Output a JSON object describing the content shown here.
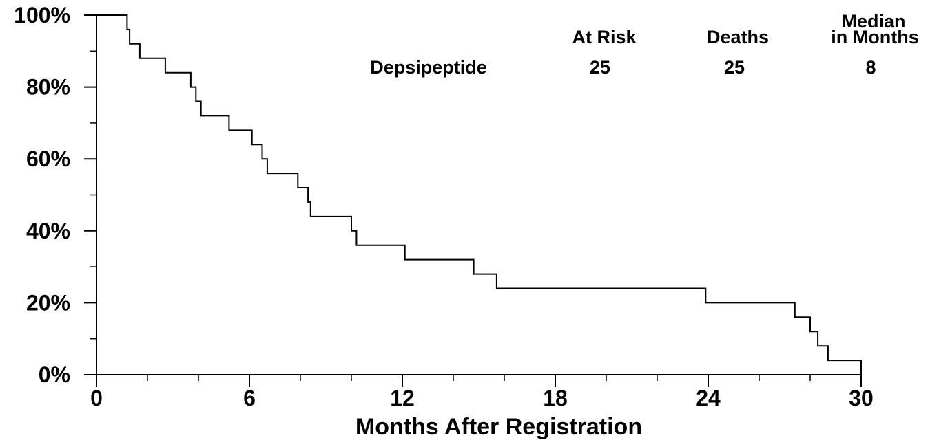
{
  "chart_data": {
    "type": "line",
    "xlabel": "Months After Registration",
    "ylabel": "",
    "xlim": [
      0,
      30
    ],
    "ylim": [
      0,
      100
    ],
    "x_ticks": [
      0,
      6,
      12,
      18,
      24,
      30
    ],
    "x_tick_labels": [
      "0",
      "6",
      "12",
      "18",
      "24",
      "30"
    ],
    "x_minor_ticks": [
      2,
      4,
      8,
      10,
      14,
      16,
      20,
      22,
      26,
      28
    ],
    "y_ticks": [
      0,
      20,
      40,
      60,
      80,
      100
    ],
    "y_tick_labels": [
      "0%",
      "20%",
      "40%",
      "60%",
      "80%",
      "100%"
    ],
    "y_minor_ticks": [
      10,
      30,
      50,
      70,
      90
    ],
    "grid": false,
    "series": [
      {
        "name": "Depsipeptide",
        "step": true,
        "color": "#000000",
        "points": [
          [
            0,
            100
          ],
          [
            1.2,
            100
          ],
          [
            1.2,
            96
          ],
          [
            1.3,
            96
          ],
          [
            1.3,
            92
          ],
          [
            1.7,
            92
          ],
          [
            1.7,
            88
          ],
          [
            2.7,
            88
          ],
          [
            2.7,
            84
          ],
          [
            3.7,
            84
          ],
          [
            3.7,
            80
          ],
          [
            3.9,
            80
          ],
          [
            3.9,
            76
          ],
          [
            4.1,
            76
          ],
          [
            4.1,
            72
          ],
          [
            5.2,
            72
          ],
          [
            5.2,
            68
          ],
          [
            6.1,
            68
          ],
          [
            6.1,
            64
          ],
          [
            6.5,
            64
          ],
          [
            6.5,
            60
          ],
          [
            6.7,
            60
          ],
          [
            6.7,
            56
          ],
          [
            7.9,
            56
          ],
          [
            7.9,
            52
          ],
          [
            8.3,
            52
          ],
          [
            8.3,
            48
          ],
          [
            8.4,
            48
          ],
          [
            8.4,
            44
          ],
          [
            10.0,
            44
          ],
          [
            10.0,
            40
          ],
          [
            10.2,
            40
          ],
          [
            10.2,
            36
          ],
          [
            12.1,
            36
          ],
          [
            12.1,
            32
          ],
          [
            14.8,
            32
          ],
          [
            14.8,
            28
          ],
          [
            15.7,
            28
          ],
          [
            15.7,
            24
          ],
          [
            23.9,
            24
          ],
          [
            23.9,
            20
          ],
          [
            27.4,
            20
          ],
          [
            27.4,
            16
          ],
          [
            28.0,
            16
          ],
          [
            28.0,
            12
          ],
          [
            28.3,
            12
          ],
          [
            28.3,
            8
          ],
          [
            28.7,
            8
          ],
          [
            28.7,
            4
          ],
          [
            30.0,
            4
          ],
          [
            30.0,
            0
          ]
        ]
      }
    ],
    "summary_table": {
      "headers": {
        "at_risk": "At Risk",
        "deaths": "Deaths",
        "median_line1": "Median",
        "median_line2": "in Months"
      },
      "rows": [
        {
          "name": "Depsipeptide",
          "at_risk": "25",
          "deaths": "25",
          "median": "8"
        }
      ]
    }
  }
}
